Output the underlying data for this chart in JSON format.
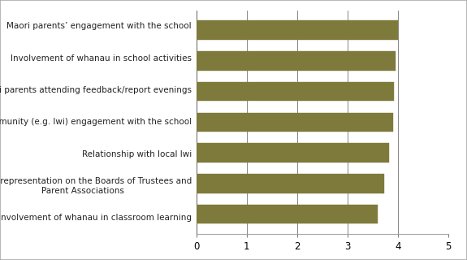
{
  "categories": [
    "Involvement of whanau in classroom learning",
    "Maori representation on the Boards of Trustees and\nParent Associations",
    "Relationship with local Iwi",
    "Maori community (e.g. Iwi) engagement with the school",
    "Maori parents attending feedback/report evenings",
    "Involvement of whanau in school activities",
    "Maori parents’ engagement with the school"
  ],
  "values": [
    3.6,
    3.72,
    3.83,
    3.9,
    3.92,
    3.95,
    4.0
  ],
  "bar_color": "#7d7a3c",
  "xlim": [
    0,
    5
  ],
  "xticks": [
    0,
    1,
    2,
    3,
    4,
    5
  ],
  "background_color": "#ffffff",
  "grid_color": "#555555",
  "bar_height": 0.62,
  "fontsize_labels": 7.5,
  "fontsize_ticks": 8.5,
  "border_color": "#aaaaaa"
}
